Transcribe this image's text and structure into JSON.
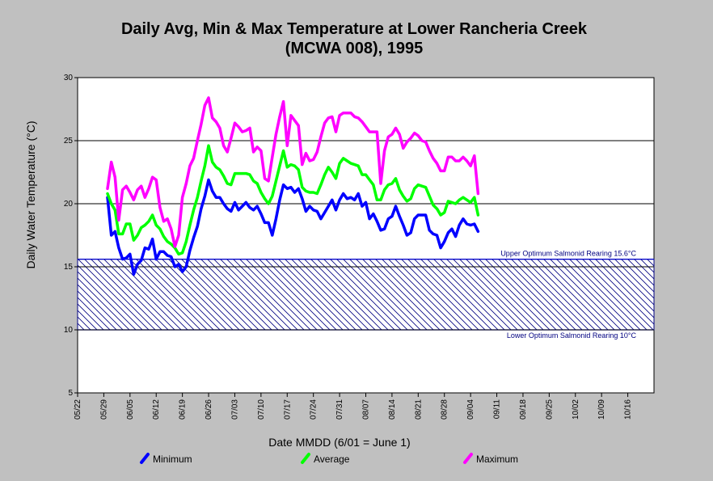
{
  "chart_data": {
    "type": "line",
    "title": "Daily Avg, Min & Max Temperature at Lower Rancheria Creek",
    "subtitle": "(MCWA 008), 1995",
    "xlabel": "Date MMDD (6/01 = June 1)",
    "ylabel": "Daily Water Temperature (°C)",
    "ylim": [
      5,
      30
    ],
    "yticks": [
      5,
      10,
      15,
      20,
      25,
      30
    ],
    "grid": "horizontal",
    "legend_position": "bottom",
    "x_tick_labels": [
      "05/22",
      "05/29",
      "06/05",
      "06/12",
      "06/19",
      "06/26",
      "07/03",
      "07/10",
      "07/17",
      "07/24",
      "07/31",
      "08/07",
      "08/14",
      "08/21",
      "08/28",
      "09/04",
      "09/11",
      "09/18",
      "09/25",
      "10/02",
      "10/09",
      "10/16"
    ],
    "x_start": "1995-05-22",
    "x_end": "1995-10-23",
    "bands": [
      {
        "label": "Upper Optimum Salmonid Rearing 15.6°C",
        "value": 15.6
      },
      {
        "label": "Lower Optimum Salmonid Rearing 10°C",
        "value": 10
      }
    ],
    "x": [
      "1995-05-30",
      "1995-05-31",
      "1995-06-01",
      "1995-06-02",
      "1995-06-03",
      "1995-06-04",
      "1995-06-05",
      "1995-06-06",
      "1995-06-07",
      "1995-06-08",
      "1995-06-09",
      "1995-06-10",
      "1995-06-11",
      "1995-06-12",
      "1995-06-13",
      "1995-06-14",
      "1995-06-15",
      "1995-06-16",
      "1995-06-17",
      "1995-06-18",
      "1995-06-19",
      "1995-06-20",
      "1995-06-21",
      "1995-06-22",
      "1995-06-23",
      "1995-06-24",
      "1995-06-25",
      "1995-06-26",
      "1995-06-27",
      "1995-06-28",
      "1995-06-29",
      "1995-06-30",
      "1995-07-01",
      "1995-07-02",
      "1995-07-03",
      "1995-07-04",
      "1995-07-05",
      "1995-07-06",
      "1995-07-07",
      "1995-07-08",
      "1995-07-09",
      "1995-07-10",
      "1995-07-11",
      "1995-07-12",
      "1995-07-13",
      "1995-07-14",
      "1995-07-15",
      "1995-07-16",
      "1995-07-17",
      "1995-07-18",
      "1995-07-19",
      "1995-07-20",
      "1995-07-21",
      "1995-07-22",
      "1995-07-23",
      "1995-07-24",
      "1995-07-25",
      "1995-07-26",
      "1995-07-27",
      "1995-07-28",
      "1995-07-29",
      "1995-07-30",
      "1995-07-31",
      "1995-08-01",
      "1995-08-02",
      "1995-08-03",
      "1995-08-04",
      "1995-08-05",
      "1995-08-06",
      "1995-08-07",
      "1995-08-08",
      "1995-08-09",
      "1995-08-10",
      "1995-08-11",
      "1995-08-12",
      "1995-08-13",
      "1995-08-14",
      "1995-08-15",
      "1995-08-16",
      "1995-08-17",
      "1995-08-18",
      "1995-08-19",
      "1995-08-20",
      "1995-08-21",
      "1995-08-22",
      "1995-08-23",
      "1995-08-24",
      "1995-08-25",
      "1995-08-26",
      "1995-08-27",
      "1995-08-28",
      "1995-08-29",
      "1995-08-30",
      "1995-08-31",
      "1995-09-01",
      "1995-09-02",
      "1995-09-03",
      "1995-09-04",
      "1995-09-05",
      "1995-09-06"
    ],
    "series": [
      {
        "name": "Minimum",
        "color": "#0000ff",
        "values": [
          20.5,
          17.5,
          17.8,
          16.5,
          15.6,
          15.7,
          16.0,
          14.4,
          15.2,
          15.5,
          16.5,
          16.4,
          17.2,
          15.6,
          16.2,
          16.2,
          15.9,
          15.8,
          15.0,
          15.2,
          14.6,
          15.0,
          16.3,
          17.3,
          18.2,
          19.6,
          20.6,
          21.9,
          21.0,
          20.5,
          20.5,
          20.0,
          19.6,
          19.4,
          20.1,
          19.5,
          19.8,
          20.1,
          19.7,
          19.5,
          19.8,
          19.2,
          18.5,
          18.5,
          17.5,
          18.8,
          20.3,
          21.5,
          21.2,
          21.3,
          20.9,
          21.2,
          20.4,
          19.4,
          19.8,
          19.5,
          19.4,
          18.8,
          19.3,
          19.8,
          20.3,
          19.5,
          20.3,
          20.8,
          20.4,
          20.5,
          20.3,
          20.8,
          19.8,
          20.1,
          18.8,
          19.2,
          18.6,
          17.9,
          18.0,
          18.8,
          19.0,
          19.8,
          19.0,
          18.3,
          17.5,
          17.7,
          18.8,
          19.1,
          19.1,
          19.1,
          17.9,
          17.6,
          17.5,
          16.5,
          17.0,
          17.7,
          18.0,
          17.4,
          18.3,
          18.8,
          18.4,
          18.3,
          18.4,
          17.8
        ]
      },
      {
        "name": "Average",
        "color": "#00ff00",
        "values": [
          20.8,
          20.0,
          19.5,
          17.6,
          17.6,
          18.4,
          18.4,
          17.1,
          17.5,
          18.1,
          18.3,
          18.6,
          19.1,
          18.3,
          18.0,
          17.4,
          17.0,
          16.8,
          16.5,
          16.0,
          16.1,
          17.0,
          18.3,
          19.5,
          20.5,
          21.8,
          23.0,
          24.6,
          23.3,
          22.9,
          22.7,
          22.2,
          21.6,
          21.5,
          22.4,
          22.4,
          22.4,
          22.4,
          22.3,
          21.8,
          21.6,
          20.9,
          20.4,
          20.0,
          20.6,
          21.8,
          23.0,
          24.2,
          22.9,
          23.1,
          23.0,
          22.7,
          21.3,
          21.0,
          20.9,
          20.9,
          20.8,
          21.5,
          22.3,
          22.9,
          22.5,
          22.0,
          23.2,
          23.6,
          23.4,
          23.2,
          23.1,
          23.0,
          22.3,
          22.3,
          21.9,
          21.5,
          20.3,
          20.3,
          21.1,
          21.5,
          21.6,
          22.0,
          21.1,
          20.6,
          20.2,
          20.4,
          21.2,
          21.5,
          21.4,
          21.3,
          20.6,
          19.9,
          19.6,
          19.1,
          19.3,
          20.2,
          20.1,
          20.0,
          20.3,
          20.5,
          20.3,
          20.1,
          20.5,
          19.1
        ]
      },
      {
        "name": "Maximum",
        "color": "#ff00ff",
        "values": [
          21.2,
          23.3,
          22.1,
          18.7,
          21.1,
          21.4,
          20.9,
          20.3,
          21.1,
          21.4,
          20.5,
          21.2,
          22.1,
          21.9,
          19.7,
          18.6,
          18.8,
          18.0,
          16.6,
          17.5,
          20.5,
          21.6,
          23.0,
          23.6,
          25.0,
          26.3,
          27.8,
          28.4,
          26.8,
          26.5,
          26.0,
          24.6,
          24.1,
          25.2,
          26.4,
          26.1,
          25.7,
          25.8,
          26.0,
          24.1,
          24.5,
          24.2,
          22.0,
          21.8,
          23.7,
          25.5,
          26.9,
          28.1,
          24.6,
          27.0,
          26.6,
          26.2,
          23.1,
          24.0,
          23.4,
          23.5,
          24.1,
          25.3,
          26.4,
          26.8,
          26.9,
          25.7,
          27.0,
          27.2,
          27.2,
          27.2,
          26.9,
          26.8,
          26.5,
          26.1,
          25.7,
          25.7,
          25.7,
          21.6,
          24.2,
          25.3,
          25.5,
          26.0,
          25.5,
          24.4,
          24.9,
          25.2,
          25.6,
          25.4,
          25.0,
          24.9,
          24.2,
          23.6,
          23.2,
          22.6,
          22.6,
          23.7,
          23.7,
          23.4,
          23.4,
          23.7,
          23.4,
          23.0,
          23.8,
          20.8
        ]
      }
    ]
  }
}
